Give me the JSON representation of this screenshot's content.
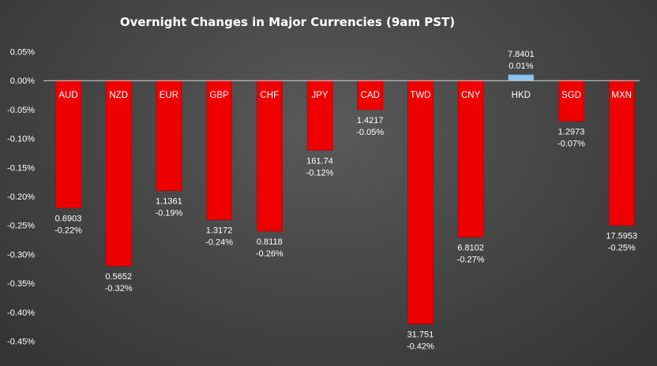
{
  "chart_data": {
    "type": "bar",
    "title": "Overnight Changes in Major Currencies (9am PST)",
    "xlabel": "",
    "ylabel": "",
    "ylim": [
      -0.45,
      0.05
    ],
    "y_ticks": [
      0.05,
      0.0,
      -0.05,
      -0.1,
      -0.15,
      -0.2,
      -0.25,
      -0.3,
      -0.35,
      -0.4,
      -0.45
    ],
    "y_tick_labels": [
      "0.05%",
      "0.00%",
      "-0.05%",
      "-0.10%",
      "-0.15%",
      "-0.20%",
      "-0.25%",
      "-0.30%",
      "-0.35%",
      "-0.40%",
      "-0.45%"
    ],
    "categories": [
      "AUD",
      "NZD",
      "EUR",
      "GBP",
      "CHF",
      "JPY",
      "CAD",
      "TWD",
      "CNY",
      "HKD",
      "SGD",
      "MXN"
    ],
    "values": [
      -0.22,
      -0.32,
      -0.19,
      -0.24,
      -0.26,
      -0.12,
      -0.05,
      -0.42,
      -0.27,
      0.01,
      -0.07,
      -0.25
    ],
    "rates": [
      "0.6903",
      "0.5652",
      "1.1361",
      "1.3172",
      "0.8118",
      "161.74",
      "1.4217",
      "31.751",
      "6.8102",
      "7.8401",
      "1.2973",
      "17.5953"
    ],
    "change_labels": [
      "-0.22%",
      "-0.32%",
      "-0.19%",
      "-0.24%",
      "-0.26%",
      "-0.12%",
      "-0.05%",
      "-0.42%",
      "-0.27%",
      "0.01%",
      "-0.07%",
      "-0.25%"
    ],
    "grid": false,
    "legend": "none",
    "colors": {
      "negative_bar": "#ee0000",
      "positive_bar": "#8fc3ee",
      "text": "#ffffff",
      "zero_line": "#d9d9d9"
    }
  }
}
